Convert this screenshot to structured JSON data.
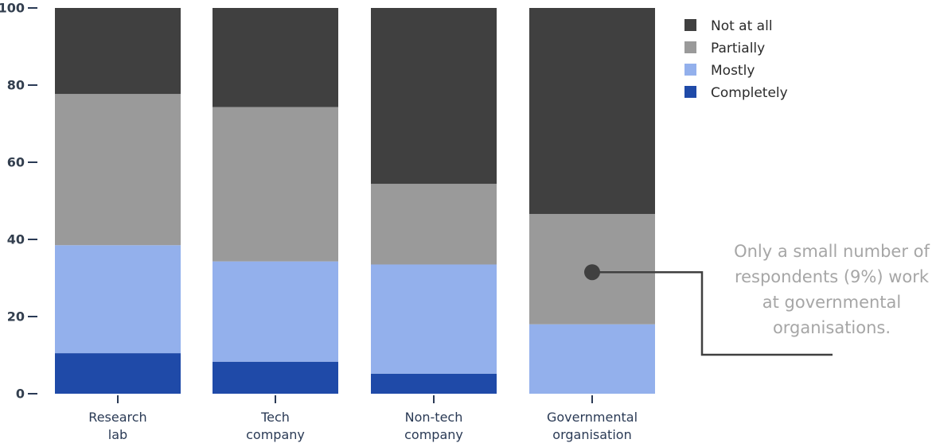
{
  "chart_data": {
    "type": "bar",
    "stacked": true,
    "categories": [
      [
        "Research",
        "lab"
      ],
      [
        "Tech",
        "company"
      ],
      [
        "Non-tech",
        "company"
      ],
      [
        "Governmental",
        "organisation"
      ]
    ],
    "ylim": [
      0,
      100
    ],
    "yticks": [
      0,
      20,
      40,
      60,
      80,
      100
    ],
    "series": [
      {
        "name": "Completely",
        "color": "#1f4aa8",
        "values": [
          10.5,
          8.3,
          5.2,
          0
        ]
      },
      {
        "name": "Mostly",
        "color": "#93b0ec",
        "values": [
          28,
          26,
          28.3,
          18
        ]
      },
      {
        "name": "Partially",
        "color": "#9a9a9a",
        "values": [
          39.2,
          40,
          20.9,
          28.6
        ]
      },
      {
        "name": "Not at all",
        "color": "#404040",
        "values": [
          22.3,
          25.7,
          45.6,
          53.4
        ]
      }
    ],
    "legend": {
      "position": "top-right",
      "order": [
        "Not at all",
        "Partially",
        "Mostly",
        "Completely"
      ]
    },
    "annotation": {
      "lines": [
        "Only a small number of",
        "respondents (9%) work",
        "at governmental",
        "organisations."
      ],
      "category": "Governmental organisation",
      "value": 31.5,
      "color": "#a6a6a6",
      "line_color": "#404040"
    }
  }
}
